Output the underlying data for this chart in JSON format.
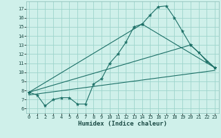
{
  "title": "",
  "xlabel": "Humidex (Indice chaleur)",
  "background_color": "#cff0ea",
  "grid_color": "#9dd4cc",
  "line_color": "#1a6e65",
  "x_ticks": [
    0,
    1,
    2,
    3,
    4,
    5,
    6,
    7,
    8,
    9,
    10,
    11,
    12,
    13,
    14,
    15,
    16,
    17,
    18,
    19,
    20,
    21,
    22,
    23
  ],
  "y_ticks": [
    6,
    7,
    8,
    9,
    10,
    11,
    12,
    13,
    14,
    15,
    16,
    17
  ],
  "ylim": [
    5.5,
    17.8
  ],
  "xlim": [
    -0.3,
    23.5
  ],
  "line1_x": [
    0,
    1,
    2,
    3,
    4,
    5,
    6,
    7,
    8,
    9,
    10,
    11,
    12,
    13,
    14,
    15,
    16,
    17,
    18,
    19,
    20,
    21,
    22,
    23
  ],
  "line1_y": [
    7.8,
    7.5,
    6.3,
    7.0,
    7.2,
    7.2,
    6.5,
    6.5,
    8.7,
    9.3,
    11.0,
    12.0,
    13.3,
    15.0,
    15.3,
    16.3,
    17.2,
    17.3,
    16.0,
    14.5,
    13.0,
    12.2,
    11.2,
    10.5
  ],
  "line2_x": [
    0,
    14,
    23
  ],
  "line2_y": [
    7.8,
    15.3,
    10.5
  ],
  "line3_x": [
    0,
    20,
    23
  ],
  "line3_y": [
    7.8,
    13.0,
    10.5
  ],
  "line4_x": [
    0,
    23
  ],
  "line4_y": [
    7.5,
    10.2
  ],
  "tick_fontsize": 5.0,
  "xlabel_fontsize": 6.5,
  "xlabel_fontweight": "bold"
}
